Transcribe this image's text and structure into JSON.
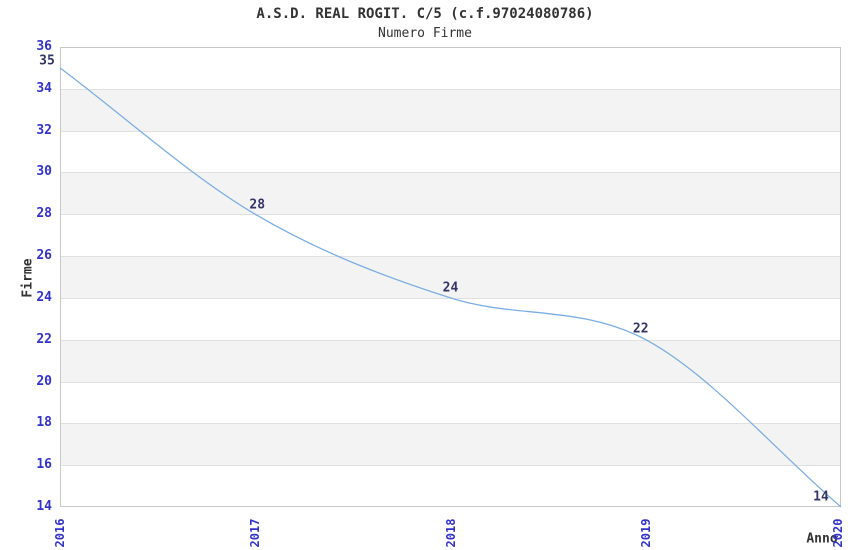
{
  "chart_data": {
    "type": "line",
    "title": "A.S.D. REAL ROGIT. C/5 (c.f.97024080786)",
    "subtitle": "Numero Firme",
    "xlabel": "Anno",
    "ylabel": "Firme",
    "categories": [
      "2016",
      "2017",
      "2018",
      "2019",
      "2020"
    ],
    "series": [
      {
        "name": "Numero Firme",
        "values": [
          35,
          28,
          24,
          22,
          14
        ]
      }
    ],
    "point_labels": [
      "35",
      "28",
      "24",
      "22",
      "14"
    ],
    "ylim": [
      14,
      36
    ],
    "yticks": [
      36,
      34,
      32,
      30,
      28,
      26,
      24,
      22,
      20,
      18,
      16,
      14
    ],
    "grid": "horizontal-alternating-bands",
    "legend_position": "none",
    "colors": {
      "line": "#7cade4",
      "tick_label": "#3232cd",
      "point_label": "#333366",
      "band_fill": "#f3f3f3",
      "grid_line": "#e0e0e0",
      "axis_border": "#c8c8c8",
      "text": "#333333"
    }
  }
}
